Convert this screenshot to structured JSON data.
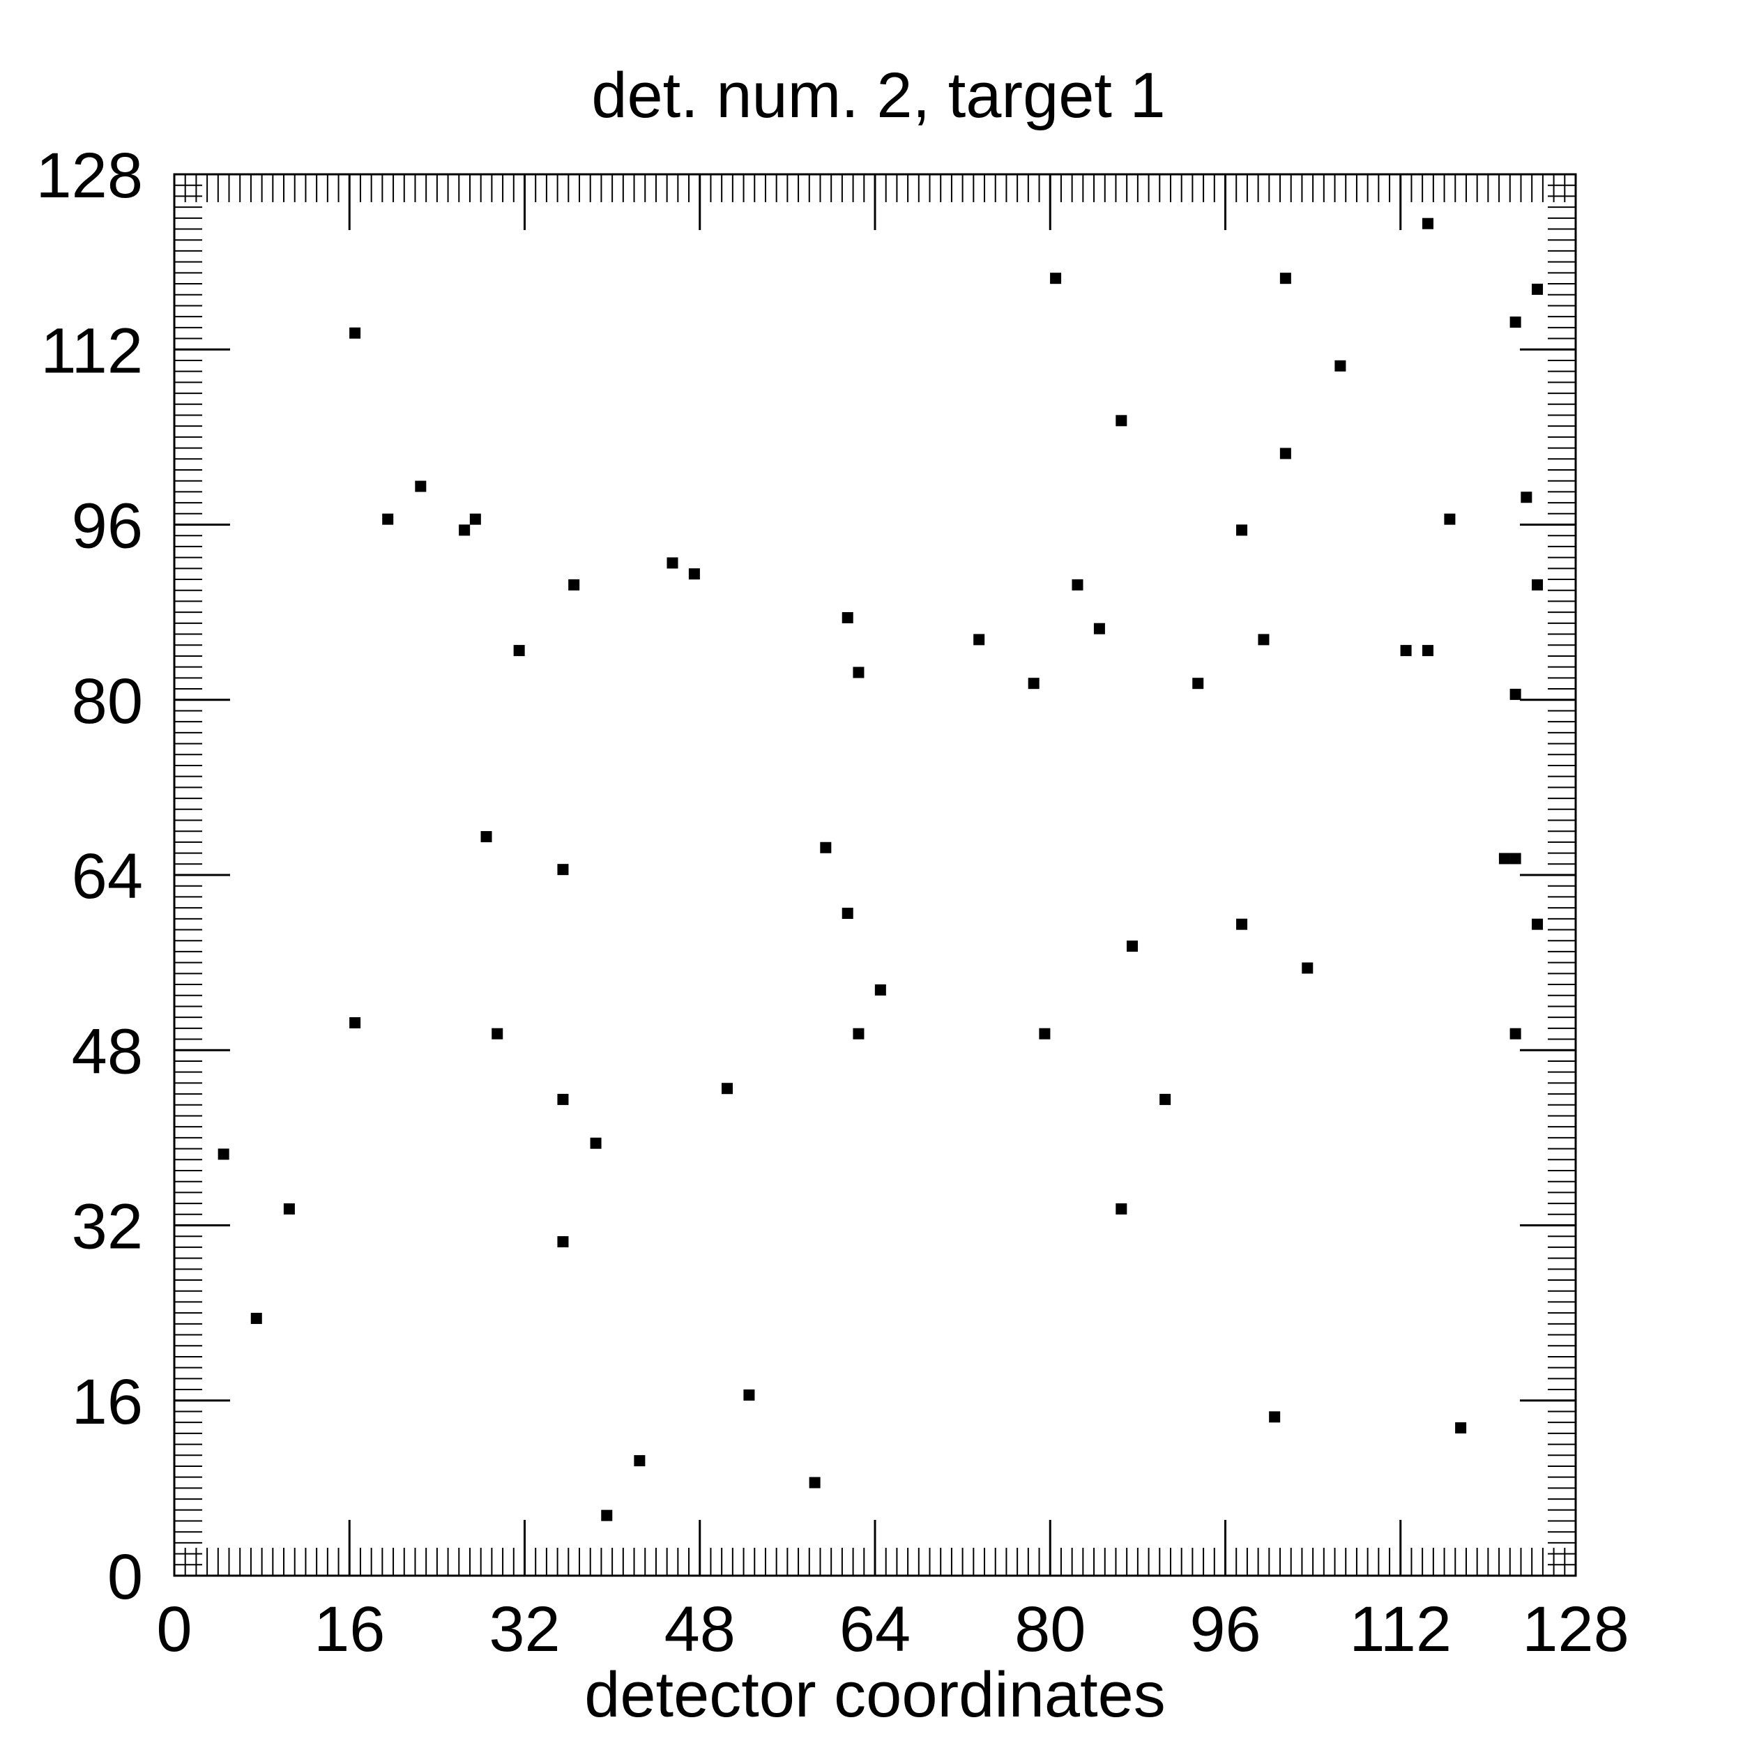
{
  "chart_data": {
    "type": "scatter",
    "title": "det. num. 2, target 1",
    "xlabel": "detector coordinates",
    "ylabel": "",
    "xlim": [
      0,
      128
    ],
    "ylim": [
      0,
      128
    ],
    "xticks": [
      "0",
      "16",
      "32",
      "48",
      "64",
      "80",
      "96",
      "112",
      "128"
    ],
    "yticks": [
      "0",
      "16",
      "32",
      "48",
      "64",
      "80",
      "96",
      "112",
      "128"
    ],
    "grid": false,
    "legend": "none",
    "marker_color": "#000000",
    "points": [
      [
        4.5,
        38.5
      ],
      [
        7.5,
        23.5
      ],
      [
        10.5,
        33.5
      ],
      [
        16.5,
        113.5
      ],
      [
        16.5,
        50.5
      ],
      [
        19.5,
        96.5
      ],
      [
        22.5,
        99.5
      ],
      [
        26.5,
        95.5
      ],
      [
        27.5,
        96.5
      ],
      [
        28.5,
        67.5
      ],
      [
        29.5,
        49.5
      ],
      [
        31.5,
        84.5
      ],
      [
        35.5,
        64.5
      ],
      [
        35.5,
        43.5
      ],
      [
        35.5,
        30.5
      ],
      [
        36.5,
        90.5
      ],
      [
        38.5,
        39.5
      ],
      [
        39.5,
        5.5
      ],
      [
        42.5,
        10.5
      ],
      [
        45.5,
        92.5
      ],
      [
        47.5,
        91.5
      ],
      [
        50.5,
        44.5
      ],
      [
        52.5,
        16.5
      ],
      [
        58.5,
        8.5
      ],
      [
        59.5,
        66.5
      ],
      [
        61.5,
        87.5
      ],
      [
        61.5,
        60.5
      ],
      [
        62.5,
        82.5
      ],
      [
        62.5,
        49.5
      ],
      [
        64.5,
        53.5
      ],
      [
        73.5,
        85.5
      ],
      [
        78.5,
        81.5
      ],
      [
        79.5,
        49.5
      ],
      [
        80.5,
        118.5
      ],
      [
        82.5,
        90.5
      ],
      [
        84.5,
        86.5
      ],
      [
        86.5,
        105.5
      ],
      [
        86.5,
        33.5
      ],
      [
        87.5,
        57.5
      ],
      [
        90.5,
        43.5
      ],
      [
        93.5,
        81.5
      ],
      [
        97.5,
        95.5
      ],
      [
        97.5,
        59.5
      ],
      [
        99.5,
        85.5
      ],
      [
        100.5,
        14.5
      ],
      [
        101.5,
        118.5
      ],
      [
        101.5,
        102.5
      ],
      [
        103.5,
        55.5
      ],
      [
        106.5,
        110.5
      ],
      [
        112.5,
        84.5
      ],
      [
        114.5,
        123.5
      ],
      [
        114.5,
        84.5
      ],
      [
        116.5,
        96.5
      ],
      [
        117.5,
        13.5
      ],
      [
        122.5,
        114.5
      ],
      [
        122.5,
        80.5
      ],
      [
        122.5,
        49.5
      ],
      [
        121.5,
        65.5
      ],
      [
        122.5,
        65.5
      ],
      [
        123.5,
        98.5
      ],
      [
        124.5,
        117.5
      ],
      [
        124.5,
        90.5
      ],
      [
        124.5,
        59.5
      ]
    ]
  }
}
